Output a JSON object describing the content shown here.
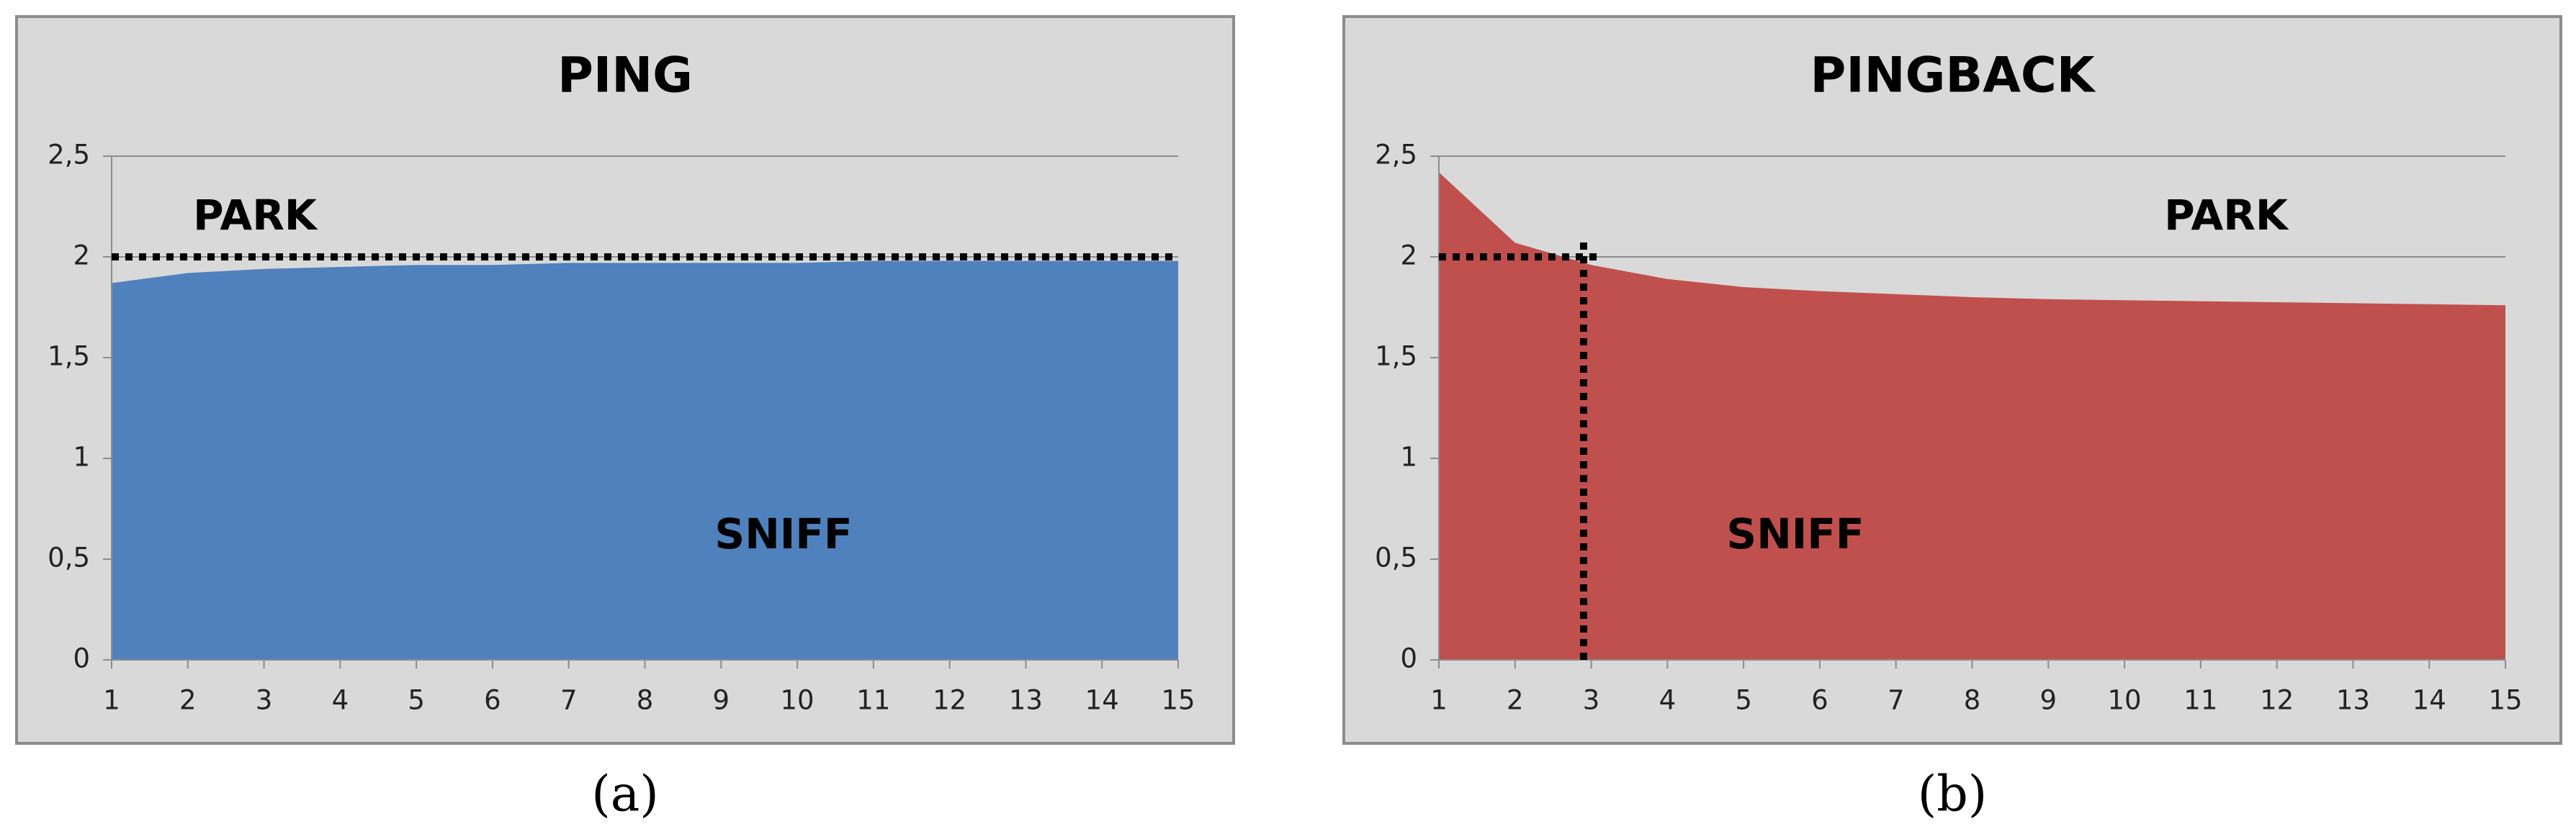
{
  "chart_data": [
    {
      "type": "area",
      "title": "PING",
      "caption": "(a)",
      "color": "#4f81bd",
      "x": [
        1,
        2,
        3,
        4,
        5,
        6,
        7,
        8,
        9,
        10,
        11,
        12,
        13,
        14,
        15
      ],
      "values": [
        1.87,
        1.92,
        1.94,
        1.95,
        1.96,
        1.96,
        1.97,
        1.97,
        1.97,
        1.97,
        1.98,
        1.98,
        1.98,
        1.98,
        1.98
      ],
      "xlim": [
        1,
        15
      ],
      "xticks": [
        1,
        2,
        3,
        4,
        5,
        6,
        7,
        8,
        9,
        10,
        11,
        12,
        13,
        14,
        15
      ],
      "ylim": [
        0,
        2.5
      ],
      "yticks": [
        0,
        {
          "value": 0.5,
          "label": "0,5"
        },
        1,
        {
          "value": 1.5,
          "label": "1,5"
        },
        2,
        {
          "value": 2.5,
          "label": "2,5"
        }
      ],
      "grid": true,
      "annotations": [
        "PARK",
        "SNIFF"
      ],
      "ref_lines": [
        {
          "x": [
            1,
            15
          ],
          "y": [
            2,
            2
          ]
        }
      ]
    },
    {
      "type": "area",
      "title": "PINGBACK",
      "caption": "(b)",
      "color": "#c0504d",
      "x": [
        1,
        2,
        3,
        4,
        5,
        6,
        7,
        8,
        9,
        10,
        11,
        12,
        13,
        14,
        15
      ],
      "values": [
        2.42,
        2.07,
        1.96,
        1.89,
        1.85,
        1.83,
        1.815,
        1.8,
        1.79,
        1.785,
        1.78,
        1.775,
        1.77,
        1.765,
        1.76
      ],
      "xlim": [
        1,
        15
      ],
      "xticks": [
        1,
        2,
        3,
        4,
        5,
        6,
        7,
        8,
        9,
        10,
        11,
        12,
        13,
        14,
        15
      ],
      "ylim": [
        0,
        2.5
      ],
      "yticks": [
        0,
        {
          "value": 0.5,
          "label": "0,5"
        },
        1,
        {
          "value": 1.5,
          "label": "1,5"
        },
        2,
        {
          "value": 2.5,
          "label": "2,5"
        }
      ],
      "grid": true,
      "annotations": [
        "PARK",
        "SNIFF"
      ],
      "ref_lines": [
        {
          "x": [
            1,
            3.1
          ],
          "y": [
            2,
            2
          ]
        },
        {
          "x": [
            2.9,
            2.9
          ],
          "y": [
            0,
            2.1
          ]
        }
      ]
    }
  ]
}
